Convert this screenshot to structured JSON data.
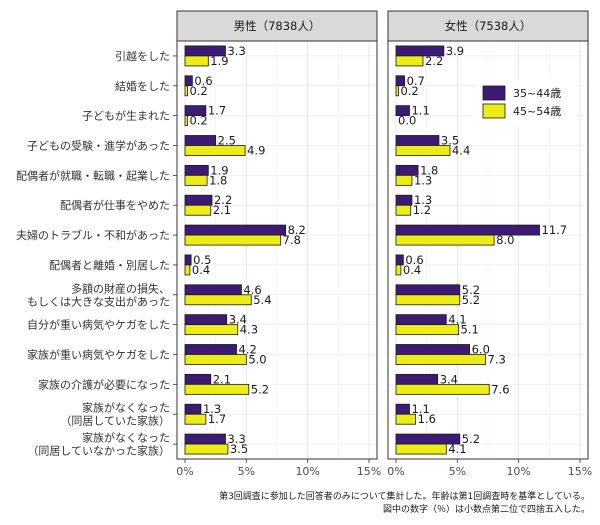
{
  "chart_data": {
    "type": "bar",
    "orientation": "horizontal",
    "categories": [
      "引越をした",
      "結婚をした",
      "子どもが生まれた",
      "子どもの受験・進学があった",
      "配偶者が就職・転職・起業した",
      "配偶者が仕事をやめた",
      "夫婦のトラブル・不和があった",
      "配偶者と離婚・別居した",
      "多額の財産の損失、\nもしくは大きな支出があった",
      "自分が重い病気やケガをした",
      "家族が重い病気やケガをした",
      "家族の介護が必要になった",
      "家族がなくなった\n（同居していた家族）",
      "家族がなくなった\n（同居していなかった家族）"
    ],
    "panels": [
      {
        "title": "男性（7838人）",
        "series": [
          {
            "name": "35~44歳",
            "values": [
              3.3,
              0.6,
              1.7,
              2.5,
              1.9,
              2.2,
              8.2,
              0.5,
              4.6,
              3.4,
              4.2,
              2.1,
              1.3,
              3.3
            ]
          },
          {
            "name": "45~54歳",
            "values": [
              1.9,
              0.2,
              0.2,
              4.9,
              1.8,
              2.1,
              7.8,
              0.4,
              5.4,
              4.3,
              5.0,
              5.2,
              1.7,
              3.5
            ]
          }
        ]
      },
      {
        "title": "女性（7538人）",
        "series": [
          {
            "name": "35~44歳",
            "values": [
              3.9,
              0.7,
              1.1,
              3.5,
              1.8,
              1.3,
              11.7,
              0.6,
              5.2,
              4.1,
              6.0,
              3.4,
              1.1,
              5.2
            ]
          },
          {
            "name": "45~54歳",
            "values": [
              2.2,
              0.2,
              0.0,
              4.4,
              1.3,
              1.2,
              8.0,
              0.4,
              5.2,
              5.1,
              7.3,
              7.6,
              1.6,
              4.1
            ]
          }
        ]
      }
    ],
    "value_labels": [
      [
        [
          "3.3",
          "0.6",
          "1.7",
          "2.5",
          "1.9",
          "2.2",
          "8.2",
          "0.5",
          "4.6",
          "3.4",
          "4.2",
          "2.1",
          "1.3",
          "3.3"
        ],
        [
          "1.9",
          "0.2",
          "0.2",
          "4.9",
          "1.8",
          "2.1",
          "7.8",
          "0.4",
          "5.4",
          "4.3",
          "5.0",
          "5.2",
          "1.7",
          "3.5"
        ]
      ],
      [
        [
          "3.9",
          "0.7",
          "1.1",
          "3.5",
          "1.8",
          "1.3",
          "11.7",
          "0.6",
          "5.2",
          "4.1",
          "6.0",
          "3.4",
          "1.1",
          "5.2"
        ],
        [
          "2.2",
          "0.2",
          "0.0",
          "4.4",
          "1.3",
          "1.2",
          "8.0",
          "0.4",
          "5.2",
          "5.1",
          "7.3",
          "7.6",
          "1.6",
          "4.1"
        ]
      ]
    ],
    "xlim": [
      0,
      15
    ],
    "xticks": [
      0,
      5,
      10,
      15
    ],
    "xtick_labels": [
      "0%",
      "5%",
      "10%",
      "15%"
    ],
    "xlabel": "",
    "ylabel": "",
    "grid": true,
    "legend": {
      "placement": "inside-right-top-of-second-panel",
      "entries": [
        "35~44歳",
        "45~54歳"
      ]
    },
    "colors": {
      "35~44歳": "#3d1a73",
      "45~54歳": "#ecec17"
    }
  },
  "notes": [
    "第3回調査に参加した回答者のみについて集計した。年齢は第1回調査時を基準としている。",
    "図中の数字（％）は小数点第二位で四捨五入した。"
  ]
}
